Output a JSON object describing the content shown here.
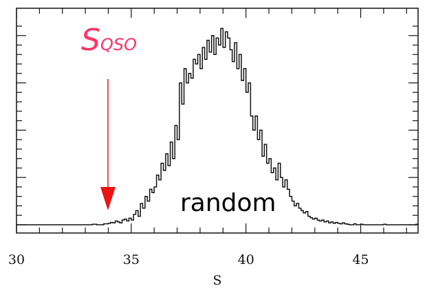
{
  "colors": {
    "marker": "#ff3366",
    "arrow": "#ee1111",
    "line": "#111111"
  },
  "chart_data": {
    "type": "histogram",
    "xlabel": "S",
    "ylabel": "",
    "xlim": [
      30,
      47.5
    ],
    "ylim": [
      0,
      420
    ],
    "x_ticks": [
      "30",
      "35",
      "40",
      "45"
    ],
    "x_tick_values": [
      30,
      35,
      40,
      45
    ],
    "y_tick_labels_shown": false,
    "grid": false,
    "bin_width": 0.1,
    "series": [
      {
        "values": [
          [
            30.0,
            0
          ],
          [
            33.3,
            1
          ],
          [
            33.5,
            0
          ],
          [
            33.8,
            2
          ],
          [
            34.0,
            3
          ],
          [
            34.1,
            5
          ],
          [
            34.2,
            4
          ],
          [
            34.3,
            8
          ],
          [
            34.4,
            6
          ],
          [
            34.5,
            4
          ],
          [
            34.6,
            10
          ],
          [
            34.7,
            12
          ],
          [
            34.8,
            8
          ],
          [
            34.9,
            14
          ],
          [
            35.0,
            10
          ],
          [
            35.1,
            22
          ],
          [
            35.2,
            30
          ],
          [
            35.3,
            18
          ],
          [
            35.4,
            45
          ],
          [
            35.5,
            35
          ],
          [
            35.6,
            60
          ],
          [
            35.7,
            50
          ],
          [
            35.8,
            75
          ],
          [
            35.9,
            68
          ],
          [
            36.0,
            80
          ],
          [
            36.1,
            105
          ],
          [
            36.2,
            95
          ],
          [
            36.3,
            130
          ],
          [
            36.4,
            115
          ],
          [
            36.5,
            150
          ],
          [
            36.6,
            125
          ],
          [
            36.7,
            175
          ],
          [
            36.8,
            140
          ],
          [
            36.9,
            210
          ],
          [
            37.0,
            180
          ],
          [
            37.1,
            300
          ],
          [
            37.2,
            255
          ],
          [
            37.3,
            330
          ],
          [
            37.4,
            300
          ],
          [
            37.5,
            320
          ],
          [
            37.6,
            310
          ],
          [
            37.7,
            350
          ],
          [
            37.8,
            340
          ],
          [
            37.9,
            360
          ],
          [
            38.0,
            330
          ],
          [
            38.1,
            375
          ],
          [
            38.2,
            350
          ],
          [
            38.3,
            390
          ],
          [
            38.4,
            365
          ],
          [
            38.5,
            400
          ],
          [
            38.6,
            360
          ],
          [
            38.7,
            395
          ],
          [
            38.8,
            380
          ],
          [
            38.9,
            415
          ],
          [
            39.0,
            375
          ],
          [
            39.1,
            408
          ],
          [
            39.2,
            395
          ],
          [
            39.3,
            370
          ],
          [
            39.4,
            345
          ],
          [
            39.5,
            385
          ],
          [
            39.6,
            330
          ],
          [
            39.7,
            360
          ],
          [
            39.8,
            305
          ],
          [
            39.9,
            330
          ],
          [
            40.0,
            280
          ],
          [
            40.1,
            300
          ],
          [
            40.2,
            230
          ],
          [
            40.3,
            200
          ],
          [
            40.4,
            230
          ],
          [
            40.5,
            180
          ],
          [
            40.6,
            200
          ],
          [
            40.7,
            145
          ],
          [
            40.8,
            170
          ],
          [
            40.9,
            130
          ],
          [
            41.0,
            140
          ],
          [
            41.1,
            110
          ],
          [
            41.2,
            120
          ],
          [
            41.3,
            95
          ],
          [
            41.4,
            130
          ],
          [
            41.5,
            100
          ],
          [
            41.6,
            80
          ],
          [
            41.7,
            95
          ],
          [
            41.8,
            75
          ],
          [
            41.9,
            60
          ],
          [
            42.0,
            50
          ],
          [
            42.1,
            40
          ],
          [
            42.2,
            45
          ],
          [
            42.3,
            35
          ],
          [
            42.4,
            30
          ],
          [
            42.5,
            25
          ],
          [
            42.6,
            28
          ],
          [
            42.7,
            18
          ],
          [
            42.8,
            15
          ],
          [
            42.9,
            12
          ],
          [
            43.0,
            14
          ],
          [
            43.1,
            10
          ],
          [
            43.2,
            8
          ],
          [
            43.3,
            10
          ],
          [
            43.4,
            6
          ],
          [
            43.5,
            8
          ],
          [
            43.6,
            4
          ],
          [
            43.7,
            6
          ],
          [
            43.8,
            3
          ],
          [
            43.9,
            5
          ],
          [
            44.0,
            3
          ],
          [
            44.1,
            2
          ],
          [
            44.2,
            4
          ],
          [
            44.3,
            2
          ],
          [
            44.4,
            1
          ],
          [
            44.5,
            0
          ],
          [
            44.7,
            2
          ],
          [
            44.8,
            0
          ],
          [
            45.0,
            1
          ],
          [
            45.1,
            0
          ],
          [
            46.0,
            1
          ],
          [
            46.1,
            0
          ],
          [
            47.4,
            1
          ],
          [
            47.5,
            0
          ]
        ]
      }
    ],
    "annotations": [
      {
        "name": "s-qso",
        "text": "S",
        "subscript": "QSO",
        "x": 34.0,
        "type": "arrow"
      },
      {
        "name": "random",
        "text": "random"
      }
    ]
  }
}
